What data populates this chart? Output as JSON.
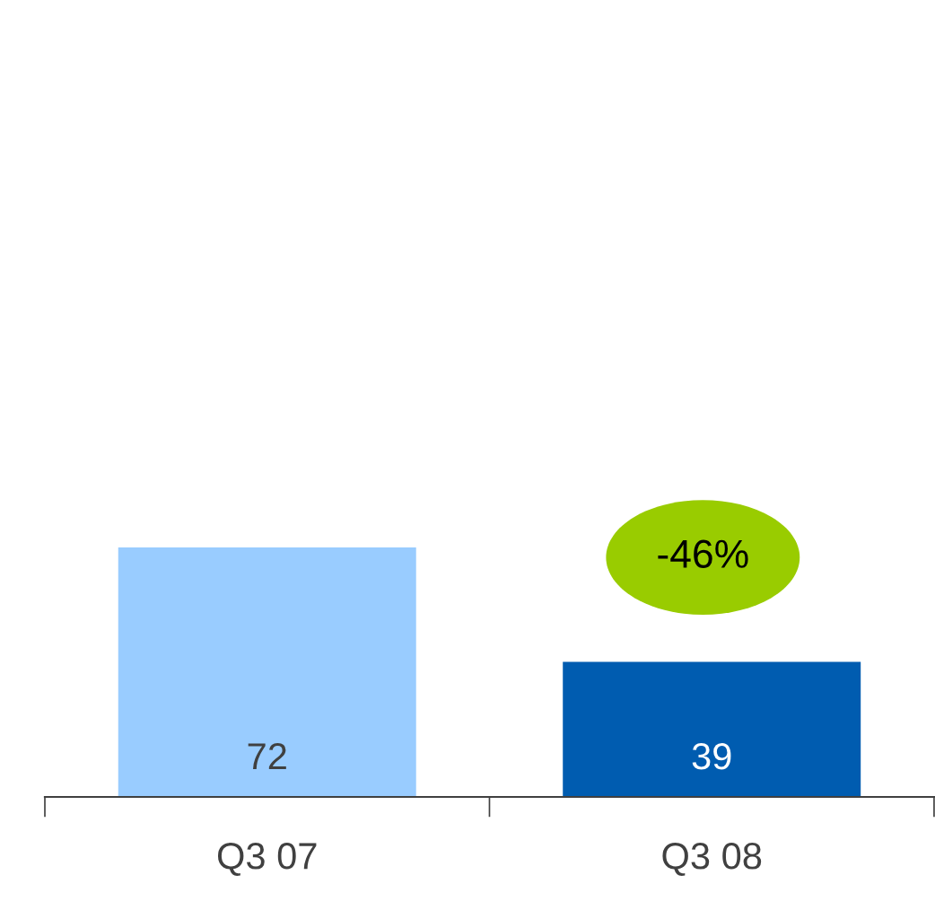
{
  "chart_data": {
    "type": "bar",
    "categories": [
      "Q3 07",
      "Q3 08"
    ],
    "values": [
      72,
      39
    ],
    "colors": [
      "#99ccff",
      "#005cb0"
    ],
    "data_labels": true,
    "annotations": [
      "-46%"
    ],
    "grid": false,
    "legend": false
  }
}
